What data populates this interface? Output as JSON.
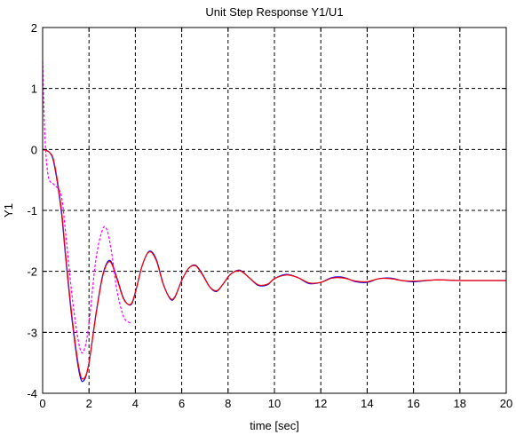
{
  "chart_data": {
    "type": "line",
    "title": "Unit Step Response Y1/U1",
    "xlabel": "time [sec]",
    "ylabel": "Y1",
    "xlim": [
      0,
      20
    ],
    "ylim": [
      -4,
      2
    ],
    "xticks": [
      0,
      2,
      4,
      6,
      8,
      10,
      12,
      14,
      16,
      18,
      20
    ],
    "yticks": [
      -4,
      -3,
      -2,
      -1,
      0,
      1,
      2
    ],
    "xtick_labels": [
      "0",
      "2",
      "4",
      "6",
      "8",
      "10",
      "12",
      "14",
      "16",
      "18",
      "20"
    ],
    "ytick_labels": [
      "-4",
      "-3",
      "-2",
      "-1",
      "0",
      "1",
      "2"
    ],
    "grid": true,
    "legend": "none",
    "series": [
      {
        "color": "#0000ff",
        "style": "solid",
        "x": [
          0,
          0.3,
          0.5,
          0.8,
          1.0,
          1.3,
          1.6,
          1.8,
          2.0,
          2.3,
          2.6,
          2.9,
          3.2,
          3.5,
          3.8,
          4.0,
          4.3,
          4.6,
          4.9,
          5.2,
          5.5,
          5.7,
          6.0,
          6.3,
          6.6,
          6.9,
          7.2,
          7.5,
          7.8,
          8.1,
          8.5,
          8.9,
          9.3,
          9.7,
          10.0,
          10.5,
          11.0,
          11.5,
          12.0,
          12.5,
          13.0,
          13.5,
          14.0,
          14.5,
          15.0,
          15.5,
          16.0,
          17.0,
          18.0,
          19.0,
          20.0
        ],
        "y": [
          0,
          -0.05,
          -0.25,
          -1.0,
          -1.8,
          -2.9,
          -3.7,
          -3.78,
          -3.5,
          -2.7,
          -2.05,
          -1.82,
          -2.1,
          -2.45,
          -2.55,
          -2.35,
          -1.9,
          -1.67,
          -1.8,
          -2.2,
          -2.45,
          -2.43,
          -2.15,
          -1.95,
          -1.9,
          -2.05,
          -2.25,
          -2.33,
          -2.2,
          -2.05,
          -1.98,
          -2.1,
          -2.23,
          -2.22,
          -2.12,
          -2.05,
          -2.1,
          -2.2,
          -2.18,
          -2.1,
          -2.1,
          -2.17,
          -2.18,
          -2.12,
          -2.11,
          -2.15,
          -2.17,
          -2.14,
          -2.15,
          -2.15,
          -2.15
        ]
      },
      {
        "color": "#ff0000",
        "style": "solid",
        "x": [
          0,
          0.3,
          0.5,
          0.8,
          1.0,
          1.3,
          1.6,
          1.8,
          2.0,
          2.3,
          2.6,
          2.9,
          3.2,
          3.5,
          3.8,
          4.0,
          4.3,
          4.6,
          4.9,
          5.2,
          5.5,
          5.7,
          6.0,
          6.3,
          6.6,
          6.9,
          7.2,
          7.5,
          7.8,
          8.1,
          8.5,
          8.9,
          9.3,
          9.7,
          10.0,
          10.5,
          11.0,
          11.5,
          12.0,
          12.5,
          13.0,
          13.5,
          14.0,
          14.5,
          15.0,
          15.5,
          16.0,
          17.0,
          18.0,
          19.0,
          20.0
        ],
        "y": [
          0,
          -0.05,
          -0.22,
          -0.95,
          -1.75,
          -2.85,
          -3.65,
          -3.75,
          -3.5,
          -2.72,
          -2.07,
          -1.84,
          -2.12,
          -2.46,
          -2.54,
          -2.34,
          -1.9,
          -1.68,
          -1.82,
          -2.21,
          -2.44,
          -2.42,
          -2.15,
          -1.95,
          -1.91,
          -2.06,
          -2.25,
          -2.32,
          -2.2,
          -2.05,
          -1.99,
          -2.1,
          -2.22,
          -2.21,
          -2.12,
          -2.06,
          -2.1,
          -2.19,
          -2.18,
          -2.11,
          -2.11,
          -2.16,
          -2.17,
          -2.12,
          -2.12,
          -2.15,
          -2.16,
          -2.14,
          -2.15,
          -2.15,
          -2.15
        ]
      },
      {
        "color": "#ff00ff",
        "style": "dashed",
        "x": [
          0,
          0.1,
          0.25,
          0.5,
          0.8,
          1.0,
          1.3,
          1.6,
          1.8,
          2.0,
          2.3,
          2.6,
          2.8,
          3.0,
          3.2,
          3.5,
          3.8
        ],
        "y": [
          1.45,
          0.2,
          -0.45,
          -0.58,
          -0.75,
          -1.4,
          -2.5,
          -3.25,
          -3.28,
          -2.85,
          -1.8,
          -1.3,
          -1.35,
          -1.75,
          -2.3,
          -2.75,
          -2.85
        ]
      }
    ]
  }
}
